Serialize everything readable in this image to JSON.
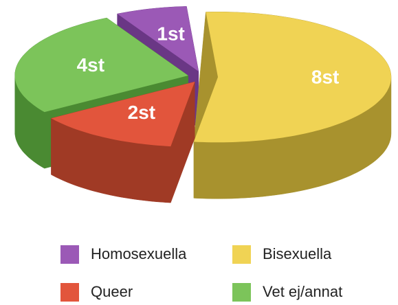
{
  "chart_data": {
    "type": "pie3d",
    "categories": [
      "Homosexuella",
      "Bisexuella",
      "Queer",
      "Vet ej/annat"
    ],
    "values": [
      1,
      8,
      2,
      4
    ],
    "value_labels": [
      "1st",
      "8st",
      "2st",
      "4st"
    ],
    "colors": [
      "#9b59b6",
      "#f0d354",
      "#e2553c",
      "#7cc45a"
    ],
    "side_colors": [
      "#6a3785",
      "#a8922e",
      "#a03a25",
      "#4a8a32"
    ],
    "legend": "bottom"
  }
}
